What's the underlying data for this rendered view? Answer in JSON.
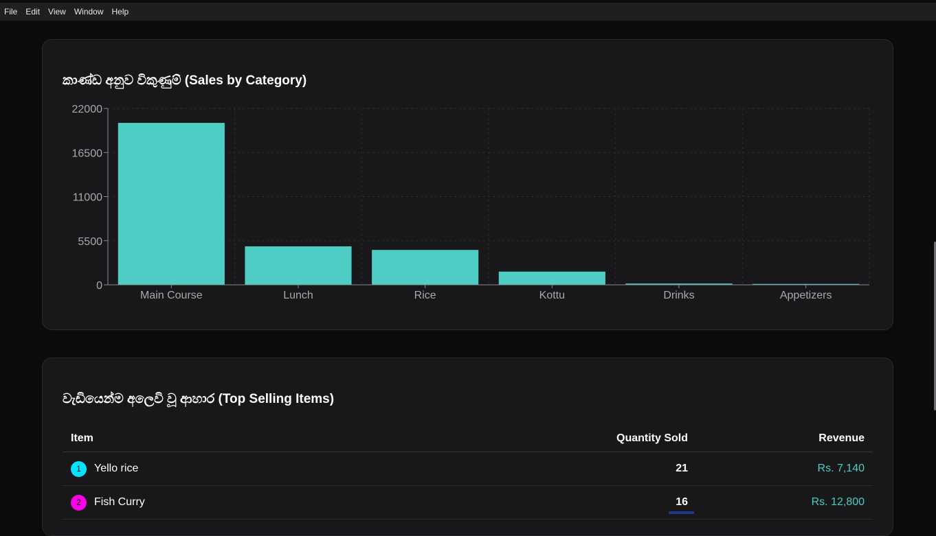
{
  "menubar": {
    "items": [
      "File",
      "Edit",
      "View",
      "Window",
      "Help"
    ]
  },
  "sales_card": {
    "title": "කාණ්ඩ අනුව විකුණුම් (Sales by Category)"
  },
  "chart_data": {
    "type": "bar",
    "categories": [
      "Main Course",
      "Lunch",
      "Rice",
      "Kottu",
      "Drinks",
      "Appetizers"
    ],
    "values": [
      20200,
      4800,
      4350,
      1650,
      160,
      110
    ],
    "ylim": [
      0,
      22000
    ],
    "yticks": [
      0,
      5500,
      11000,
      16500,
      22000
    ],
    "ytick_labels": [
      "0",
      "5500",
      "11000",
      "16500",
      "22000"
    ],
    "grid": true,
    "bar_color": "#4ecdc4"
  },
  "top_card": {
    "title": "වැඩියෙන්ම අලෙවි වූ ආහාර (Top Selling Items)",
    "columns": {
      "item": "Item",
      "quantity": "Quantity Sold",
      "revenue": "Revenue"
    },
    "rows": [
      {
        "rank": "1",
        "item": "Yello rice",
        "quantity": "21",
        "revenue": "Rs. 7,140",
        "badge_color": "#00e5ff"
      },
      {
        "rank": "2",
        "item": "Fish Curry",
        "quantity": "16",
        "revenue": "Rs. 12,800",
        "badge_color": "#ff00e6"
      }
    ]
  }
}
